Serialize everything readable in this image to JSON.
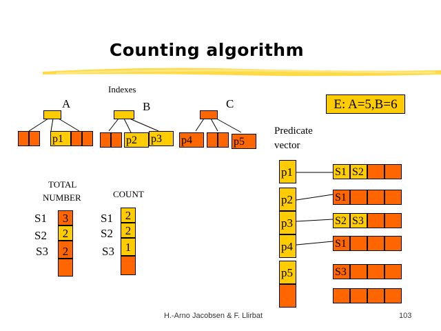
{
  "slide": {
    "title": "Counting algorithm",
    "indexes_label": "Indexes",
    "trees": [
      {
        "name": "A",
        "predicates": [
          "p1"
        ]
      },
      {
        "name": "B",
        "predicates": [
          "p2",
          "p3"
        ]
      },
      {
        "name": "C",
        "predicates": [
          "p4",
          "p5"
        ]
      }
    ],
    "event": "E: A=5,B=6",
    "predicate_vector_label": [
      "Predicate",
      "vector"
    ],
    "predicate_vector": [
      "p1",
      "p2",
      "p3",
      "p4",
      "p5"
    ],
    "subscription_lists": [
      [
        "S1",
        "S2"
      ],
      [
        "S1"
      ],
      [
        "S2",
        "S3"
      ],
      [
        "S1"
      ],
      [
        "S3"
      ]
    ],
    "total_number": {
      "label_line1": "TOTAL",
      "label_line2": "NUMBER",
      "rows": [
        {
          "sub": "S1",
          "value": "3"
        },
        {
          "sub": "S2",
          "value": "2"
        },
        {
          "sub": "S3",
          "value": "2"
        }
      ]
    },
    "count": {
      "label": "COUNT",
      "rows": [
        {
          "sub": "S1",
          "value": "2"
        },
        {
          "sub": "S2",
          "value": "2"
        },
        {
          "sub": "S3",
          "value": "1"
        }
      ]
    },
    "footer_author": "H.-Arno Jacobsen & F. Llirbat",
    "page_number": "103"
  }
}
